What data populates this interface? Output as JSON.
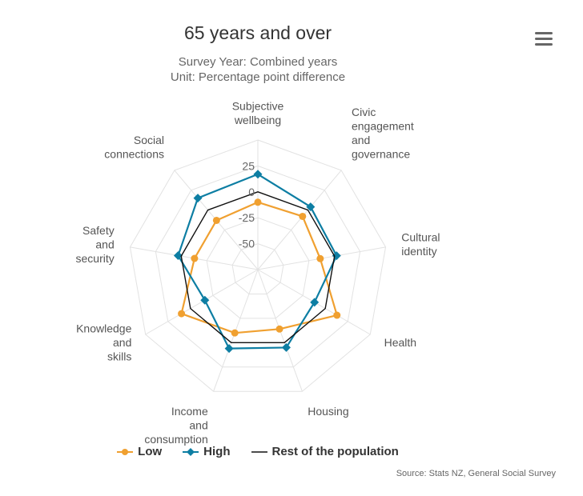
{
  "header": {
    "title": "65 years and over",
    "subtitle_lines": [
      "Survey Year: Combined years",
      "Unit: Percentage point difference"
    ]
  },
  "menu": {
    "icon": "hamburger-menu-icon"
  },
  "colors": {
    "low": "#f0a030",
    "high": "#0d7ea3",
    "rest": "#111111",
    "grid": "#e2e2e2"
  },
  "chart_data": {
    "type": "radar",
    "title": "65 years and over",
    "categories": [
      {
        "id": "subjective-wellbeing",
        "lines": [
          "Subjective",
          "wellbeing"
        ]
      },
      {
        "id": "civic-engagement",
        "lines": [
          "Civic",
          "engagement",
          "and",
          "governance"
        ]
      },
      {
        "id": "cultural-identity",
        "lines": [
          "Cultural",
          "identity"
        ]
      },
      {
        "id": "health",
        "lines": [
          "Health"
        ]
      },
      {
        "id": "housing",
        "lines": [
          "Housing"
        ]
      },
      {
        "id": "income-consumption",
        "lines": [
          "Income",
          "and",
          "consumption"
        ]
      },
      {
        "id": "knowledge-skills",
        "lines": [
          "Knowledge",
          "and",
          "skills"
        ]
      },
      {
        "id": "safety-security",
        "lines": [
          "Safety",
          "and",
          "security"
        ]
      },
      {
        "id": "social-connections",
        "lines": [
          "Social",
          "connections"
        ]
      }
    ],
    "radial_axis": {
      "min": -75,
      "max": 50,
      "ticks": [
        -50,
        -25,
        0,
        25
      ]
    },
    "series": [
      {
        "name": "Low",
        "key": "low",
        "marker": "circle",
        "values": [
          -10,
          -8,
          -14,
          13,
          -14,
          -10,
          10,
          -13,
          -13
        ]
      },
      {
        "name": "High",
        "key": "high",
        "marker": "diamond",
        "values": [
          17,
          4,
          2,
          -12,
          5,
          6,
          -16,
          3,
          15
        ]
      },
      {
        "name": "Rest of the population",
        "key": "rest",
        "marker": "none",
        "values": [
          0,
          0,
          0,
          0,
          0,
          0,
          0,
          0,
          0
        ]
      }
    ],
    "legend_position": "bottom",
    "grid": true
  },
  "source": "Source: Stats NZ, General Social Survey"
}
